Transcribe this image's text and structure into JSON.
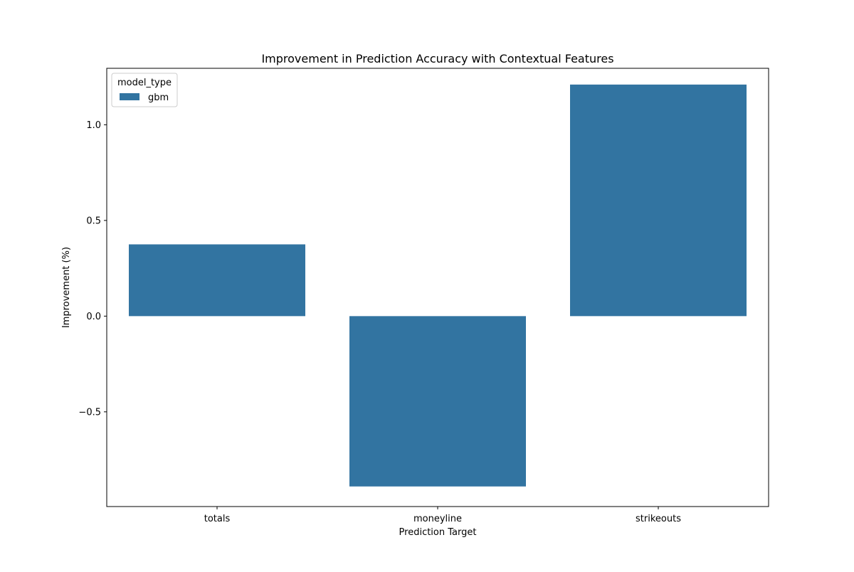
{
  "chart_data": {
    "type": "bar",
    "title": "Improvement in Prediction Accuracy with Contextual Features",
    "xlabel": "Prediction Target",
    "ylabel": "Improvement (%)",
    "categories": [
      "totals",
      "moneyline",
      "strikeouts"
    ],
    "series": [
      {
        "name": "gbm",
        "values": [
          0.375,
          -0.89,
          1.21
        ],
        "color": "#3274a1"
      }
    ],
    "ylim": [
      -0.995,
      1.295
    ],
    "yticks": [
      -0.5,
      0.0,
      0.5,
      1.0
    ],
    "ytick_labels": [
      "−0.5",
      "0.0",
      "0.5",
      "1.0"
    ],
    "legend": {
      "title": "model_type",
      "placement": "top-left"
    },
    "grid": false
  }
}
